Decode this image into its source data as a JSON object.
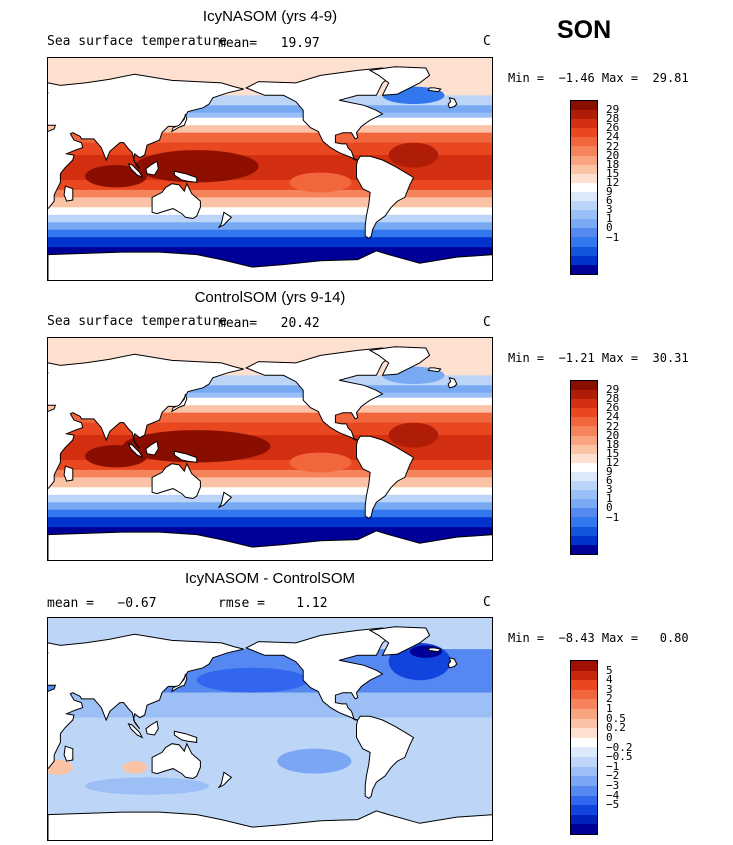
{
  "season": "SON",
  "colors": {
    "sst_palette": [
      "#000099",
      "#0033cc",
      "#1155dd",
      "#3377ee",
      "#5588f0",
      "#77aaf3",
      "#99c0f6",
      "#bbd4f8",
      "#ddeafa",
      "#ffffff",
      "#fde0d0",
      "#fbc3a5",
      "#f8a480",
      "#f5845c",
      "#f2663d",
      "#e8471f",
      "#d22f10",
      "#b01d06",
      "#8a0e00"
    ],
    "diff_palette": [
      "#000099",
      "#0022bb",
      "#1144dd",
      "#3366ee",
      "#5588f0",
      "#7aa6f3",
      "#9cc0f6",
      "#bdd6f8",
      "#dce9fb",
      "#ffffff",
      "#fde0d0",
      "#fbc3a5",
      "#f8a480",
      "#f5845c",
      "#f2663d",
      "#e8471f",
      "#c8280c",
      "#a01004"
    ],
    "land": "#ffffff"
  },
  "panels": [
    {
      "title": "IcyNASOM (yrs 4-9)",
      "variable": "Sea surface temperature",
      "mean_text": "mean=   19.97",
      "unit": "C",
      "minmax_text": "Min =  −1.46 Max =  29.81",
      "colorbar_labels": [
        "29",
        "28",
        "26",
        "24",
        "22",
        "20",
        "18",
        "15",
        "12",
        "9",
        "6",
        "3",
        "1",
        "0",
        "−1"
      ]
    },
    {
      "title": "ControlSOM (yrs 9-14)",
      "variable": "Sea surface temperature",
      "mean_text": "mean=   20.42",
      "unit": "C",
      "minmax_text": "Min =  −1.21 Max =  30.31",
      "colorbar_labels": [
        "29",
        "28",
        "26",
        "24",
        "22",
        "20",
        "18",
        "15",
        "12",
        "9",
        "6",
        "3",
        "1",
        "0",
        "−1"
      ]
    },
    {
      "title": "IcyNASOM - ControlSOM",
      "mean_text": "mean =   −0.67",
      "rmse_text": "rmse =    1.12",
      "unit": "C",
      "minmax_text": "Min =  −8.43 Max =   0.80",
      "colorbar_labels": [
        "5",
        "4",
        "3",
        "2",
        "1",
        "0.5",
        "0.2",
        "0",
        "−0.2",
        "−0.5",
        "−1",
        "−2",
        "−3",
        "−4",
        "−5"
      ]
    }
  ],
  "chart_data": [
    {
      "type": "heatmap",
      "title": "IcyNASOM (yrs 4-9)",
      "subtitle": "Sea surface temperature",
      "mean": 19.97,
      "min": -1.46,
      "max": 29.81,
      "units": "C",
      "levels": [
        -1,
        0,
        1,
        3,
        6,
        9,
        12,
        15,
        18,
        20,
        22,
        24,
        26,
        28,
        29
      ],
      "xlim": [
        30,
        390
      ],
      "ylim": [
        -90,
        90
      ]
    },
    {
      "type": "heatmap",
      "title": "ControlSOM (yrs 9-14)",
      "subtitle": "Sea surface temperature",
      "mean": 20.42,
      "min": -1.21,
      "max": 30.31,
      "units": "C",
      "levels": [
        -1,
        0,
        1,
        3,
        6,
        9,
        12,
        15,
        18,
        20,
        22,
        24,
        26,
        28,
        29
      ],
      "xlim": [
        30,
        390
      ],
      "ylim": [
        -90,
        90
      ]
    },
    {
      "type": "heatmap",
      "title": "IcyNASOM - ControlSOM",
      "mean": -0.67,
      "rmse": 1.12,
      "min": -8.43,
      "max": 0.8,
      "units": "C",
      "levels": [
        -5,
        -4,
        -3,
        -2,
        -1,
        -0.5,
        -0.2,
        0,
        0.2,
        0.5,
        1,
        2,
        3,
        4,
        5
      ],
      "xlim": [
        30,
        390
      ],
      "ylim": [
        -90,
        90
      ]
    }
  ]
}
